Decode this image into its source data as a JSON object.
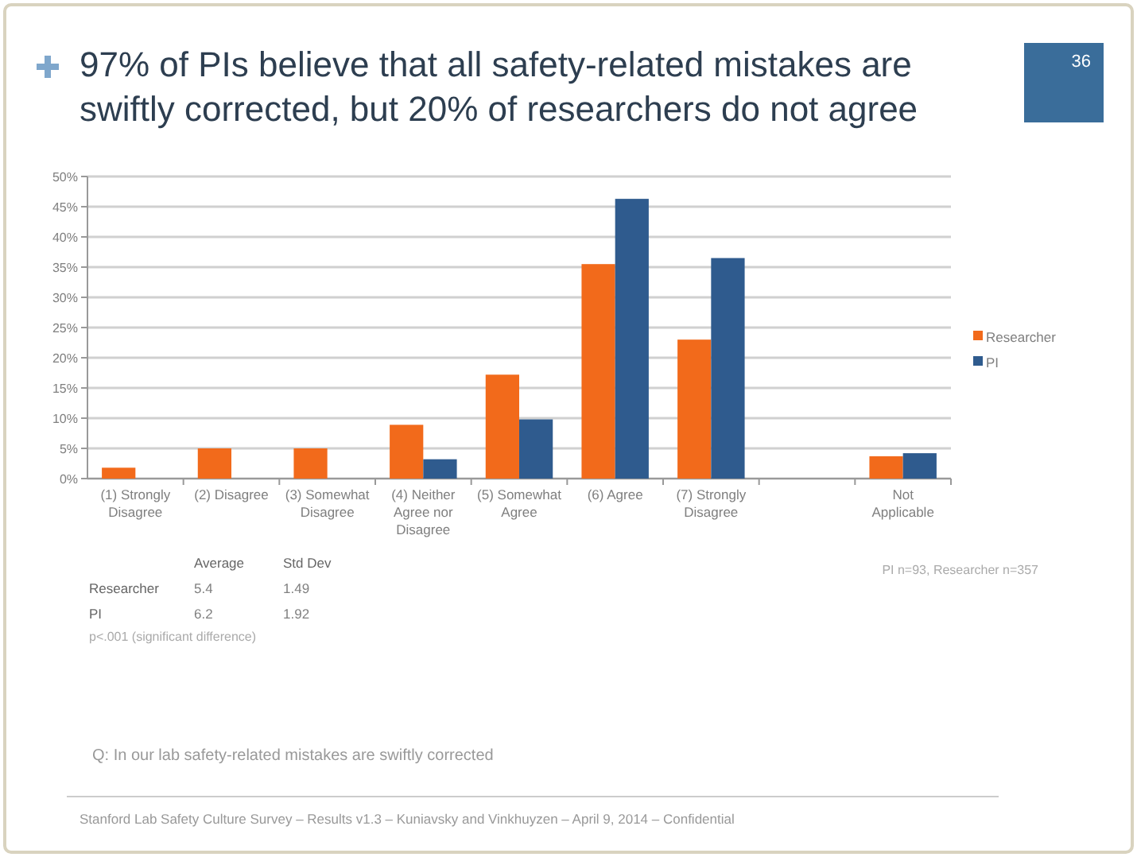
{
  "chart_data": {
    "type": "bar",
    "title": "97% of PIs believe that all safety-related mistakes are swiftly corrected, but 20% of researchers do not agree",
    "categories": [
      "(1) Strongly Disagree",
      "(2) Disagree",
      "(3) Somewhat Disagree",
      "(4) Neither Agree nor Disagree",
      "(5) Somewhat Agree",
      "(6) Agree",
      "(7) Strongly Disagree",
      null,
      "Not Applicable"
    ],
    "series": [
      {
        "name": "Researcher",
        "color": "#f26a1b",
        "values": [
          1.8,
          5.0,
          5.0,
          8.9,
          17.2,
          35.5,
          23.0,
          null,
          3.7
        ]
      },
      {
        "name": "PI",
        "color": "#2f5b8e",
        "values": [
          0,
          0,
          0,
          3.2,
          9.8,
          46.3,
          36.5,
          null,
          4.2
        ]
      }
    ],
    "ylim": [
      0,
      50
    ],
    "yticks": [
      {
        "value": 0,
        "label": "0%"
      },
      {
        "value": 5,
        "label": "5%"
      },
      {
        "value": 10,
        "label": "10%"
      },
      {
        "value": 15,
        "label": "15%"
      },
      {
        "value": 20,
        "label": "20%"
      },
      {
        "value": 25,
        "label": "25%"
      },
      {
        "value": 30,
        "label": "30%"
      },
      {
        "value": 35,
        "label": "35%"
      },
      {
        "value": 40,
        "label": "40%"
      },
      {
        "value": 45,
        "label": "45%"
      },
      {
        "value": 50,
        "label": "50%"
      }
    ],
    "grid": "y",
    "legend": "right",
    "annotations": [
      "36",
      "Average",
      "Std Dev",
      "Researcher",
      "5.4",
      "1.49",
      "PI",
      "6.2",
      "1.92",
      "p<.001 (significant difference)",
      "PI n=93, Researcher n=357",
      "Q: In our lab safety-related mistakes are swiftly corrected",
      "Stanford Lab Safety Culture Survey –  Results v1.3 – Kuniavsky and Vinkhuyzen – April 9, 2014 – Confidential"
    ]
  }
}
